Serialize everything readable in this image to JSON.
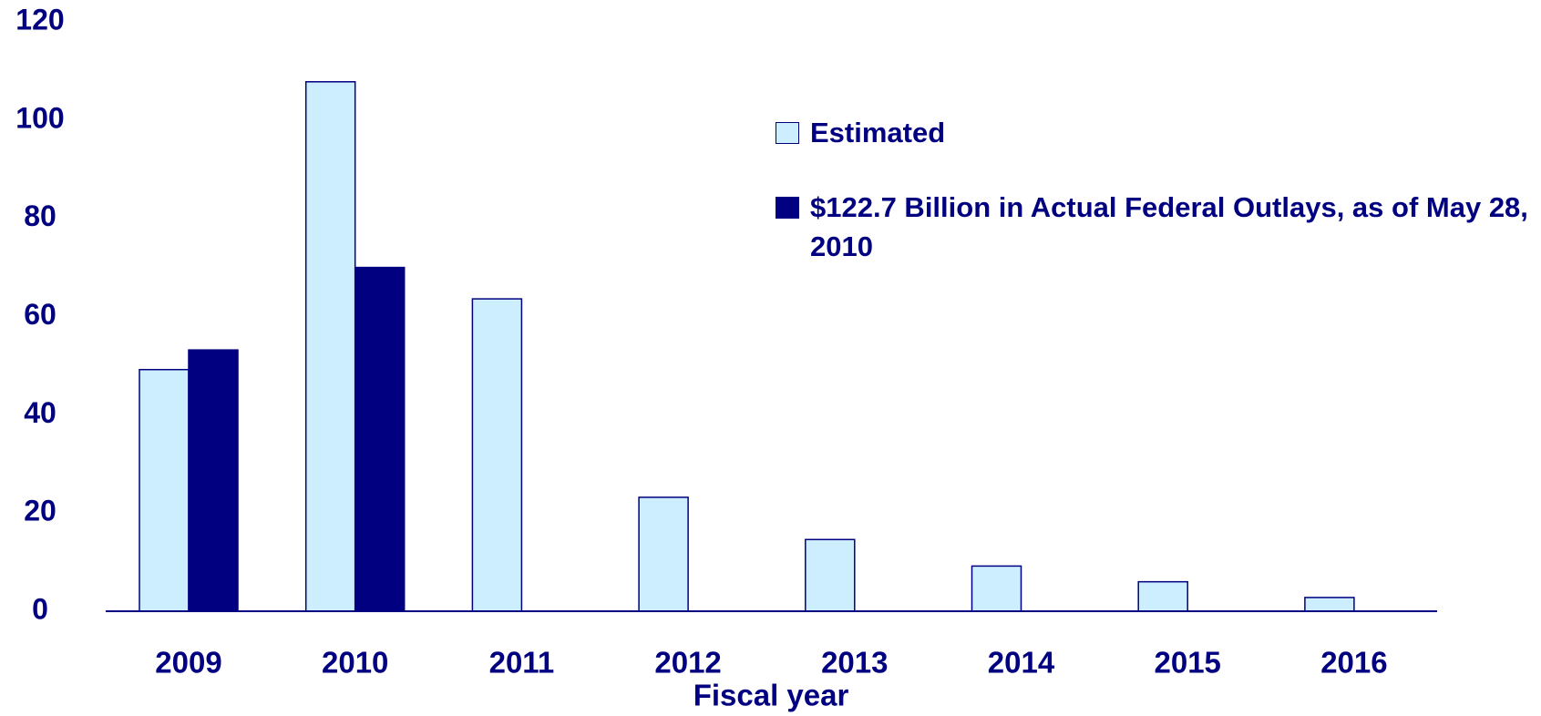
{
  "chart_data": {
    "type": "bar",
    "x_label": "Fiscal year",
    "categories": [
      "2009",
      "2010",
      "2011",
      "2012",
      "2013",
      "2014",
      "2015",
      "2016"
    ],
    "series": [
      {
        "name": "Estimated",
        "color": "#cceeff",
        "values": [
          49.2,
          107.8,
          63.6,
          23.2,
          14.6,
          9.2,
          6,
          2.8
        ]
      },
      {
        "name": "$122.7 Billion in Actual Federal Outlays, as of May 28, 2010",
        "color": "#000080",
        "values": [
          53.2,
          70,
          null,
          null,
          null,
          null,
          null,
          null
        ]
      }
    ],
    "ylim": [
      0,
      120
    ],
    "yticks": [
      0,
      20,
      40,
      60,
      80,
      100,
      120
    ],
    "grid": false,
    "legend": "upper right"
  }
}
